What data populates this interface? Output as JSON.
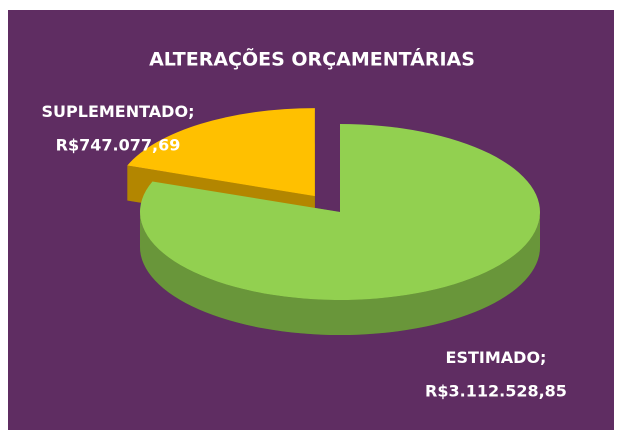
{
  "chart_data": {
    "type": "pie",
    "title": "ALTERAÇÕES ORÇAMENTÁRIAS",
    "categories": [
      "ESTIMADO",
      "SUPLEMENTADO"
    ],
    "values": [
      3112528.85,
      747077.69
    ],
    "value_labels": [
      "R$3.112.528,85",
      "R$747.077,69"
    ],
    "data_label_separator": ";",
    "colors": [
      "#92d050",
      "#ffc000"
    ],
    "background": "#5f2d62"
  }
}
